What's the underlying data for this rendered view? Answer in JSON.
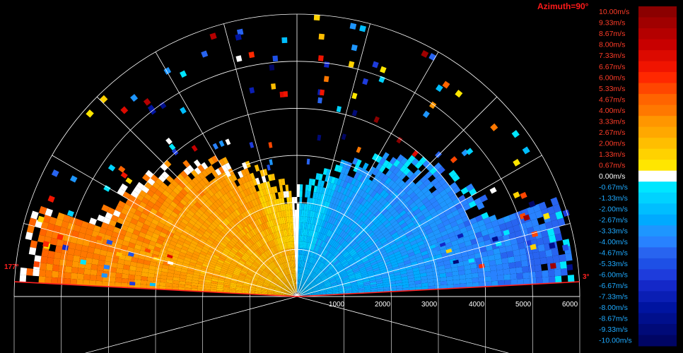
{
  "chart_data": {
    "type": "heatmap",
    "title": "Azimuth=90°",
    "azimuth_deg": 90,
    "elevation_labels": [
      "177°",
      "3°"
    ],
    "range_ticks": [
      "1000",
      "2000",
      "3000",
      "4000",
      "5000",
      "6000"
    ],
    "range_max": 6000,
    "colorbar": {
      "labels": [
        "10.00m/s",
        "9.33m/s",
        "8.67m/s",
        "8.00m/s",
        "7.33m/s",
        "6.67m/s",
        "6.00m/s",
        "5.33m/s",
        "4.67m/s",
        "4.00m/s",
        "3.33m/s",
        "2.67m/s",
        "2.00m/s",
        "1.33m/s",
        "0.67m/s",
        "0.00m/s",
        "-0.67m/s",
        "-1.33m/s",
        "-2.00m/s",
        "-2.67m/s",
        "-3.33m/s",
        "-4.00m/s",
        "-4.67m/s",
        "-5.33m/s",
        "-6.00m/s",
        "-6.67m/s",
        "-7.33m/s",
        "-8.00m/s",
        "-8.67m/s",
        "-9.33m/s",
        "-10.00m/s"
      ],
      "colors": [
        "#8b0000",
        "#a00000",
        "#b40000",
        "#c80000",
        "#dc0a00",
        "#f01400",
        "#ff2800",
        "#ff4600",
        "#ff6400",
        "#ff7800",
        "#ff9600",
        "#ffa800",
        "#ffbe00",
        "#ffd200",
        "#ffe600",
        "#ffffff",
        "#00e6ff",
        "#00d2ff",
        "#00beff",
        "#00aaff",
        "#1e96ff",
        "#2882ff",
        "#2864f0",
        "#1e50e6",
        "#1e3cdc",
        "#1428c8",
        "#0a1eb4",
        "#0014a0",
        "#000f8c",
        "#000a78",
        "#000564"
      ]
    },
    "velocity_field": {
      "description_units": "m/s",
      "near_field_left_mean": 3.3,
      "near_field_right_mean": -3.5,
      "max_abs": 10
    }
  },
  "colors": {
    "title": "#ff1a1a",
    "positive_label": "#ff3c28",
    "negative_label": "#1eaaff",
    "zero_label": "#ffffff",
    "grid": "#ffffff",
    "elevation_line": "#ff2020"
  }
}
